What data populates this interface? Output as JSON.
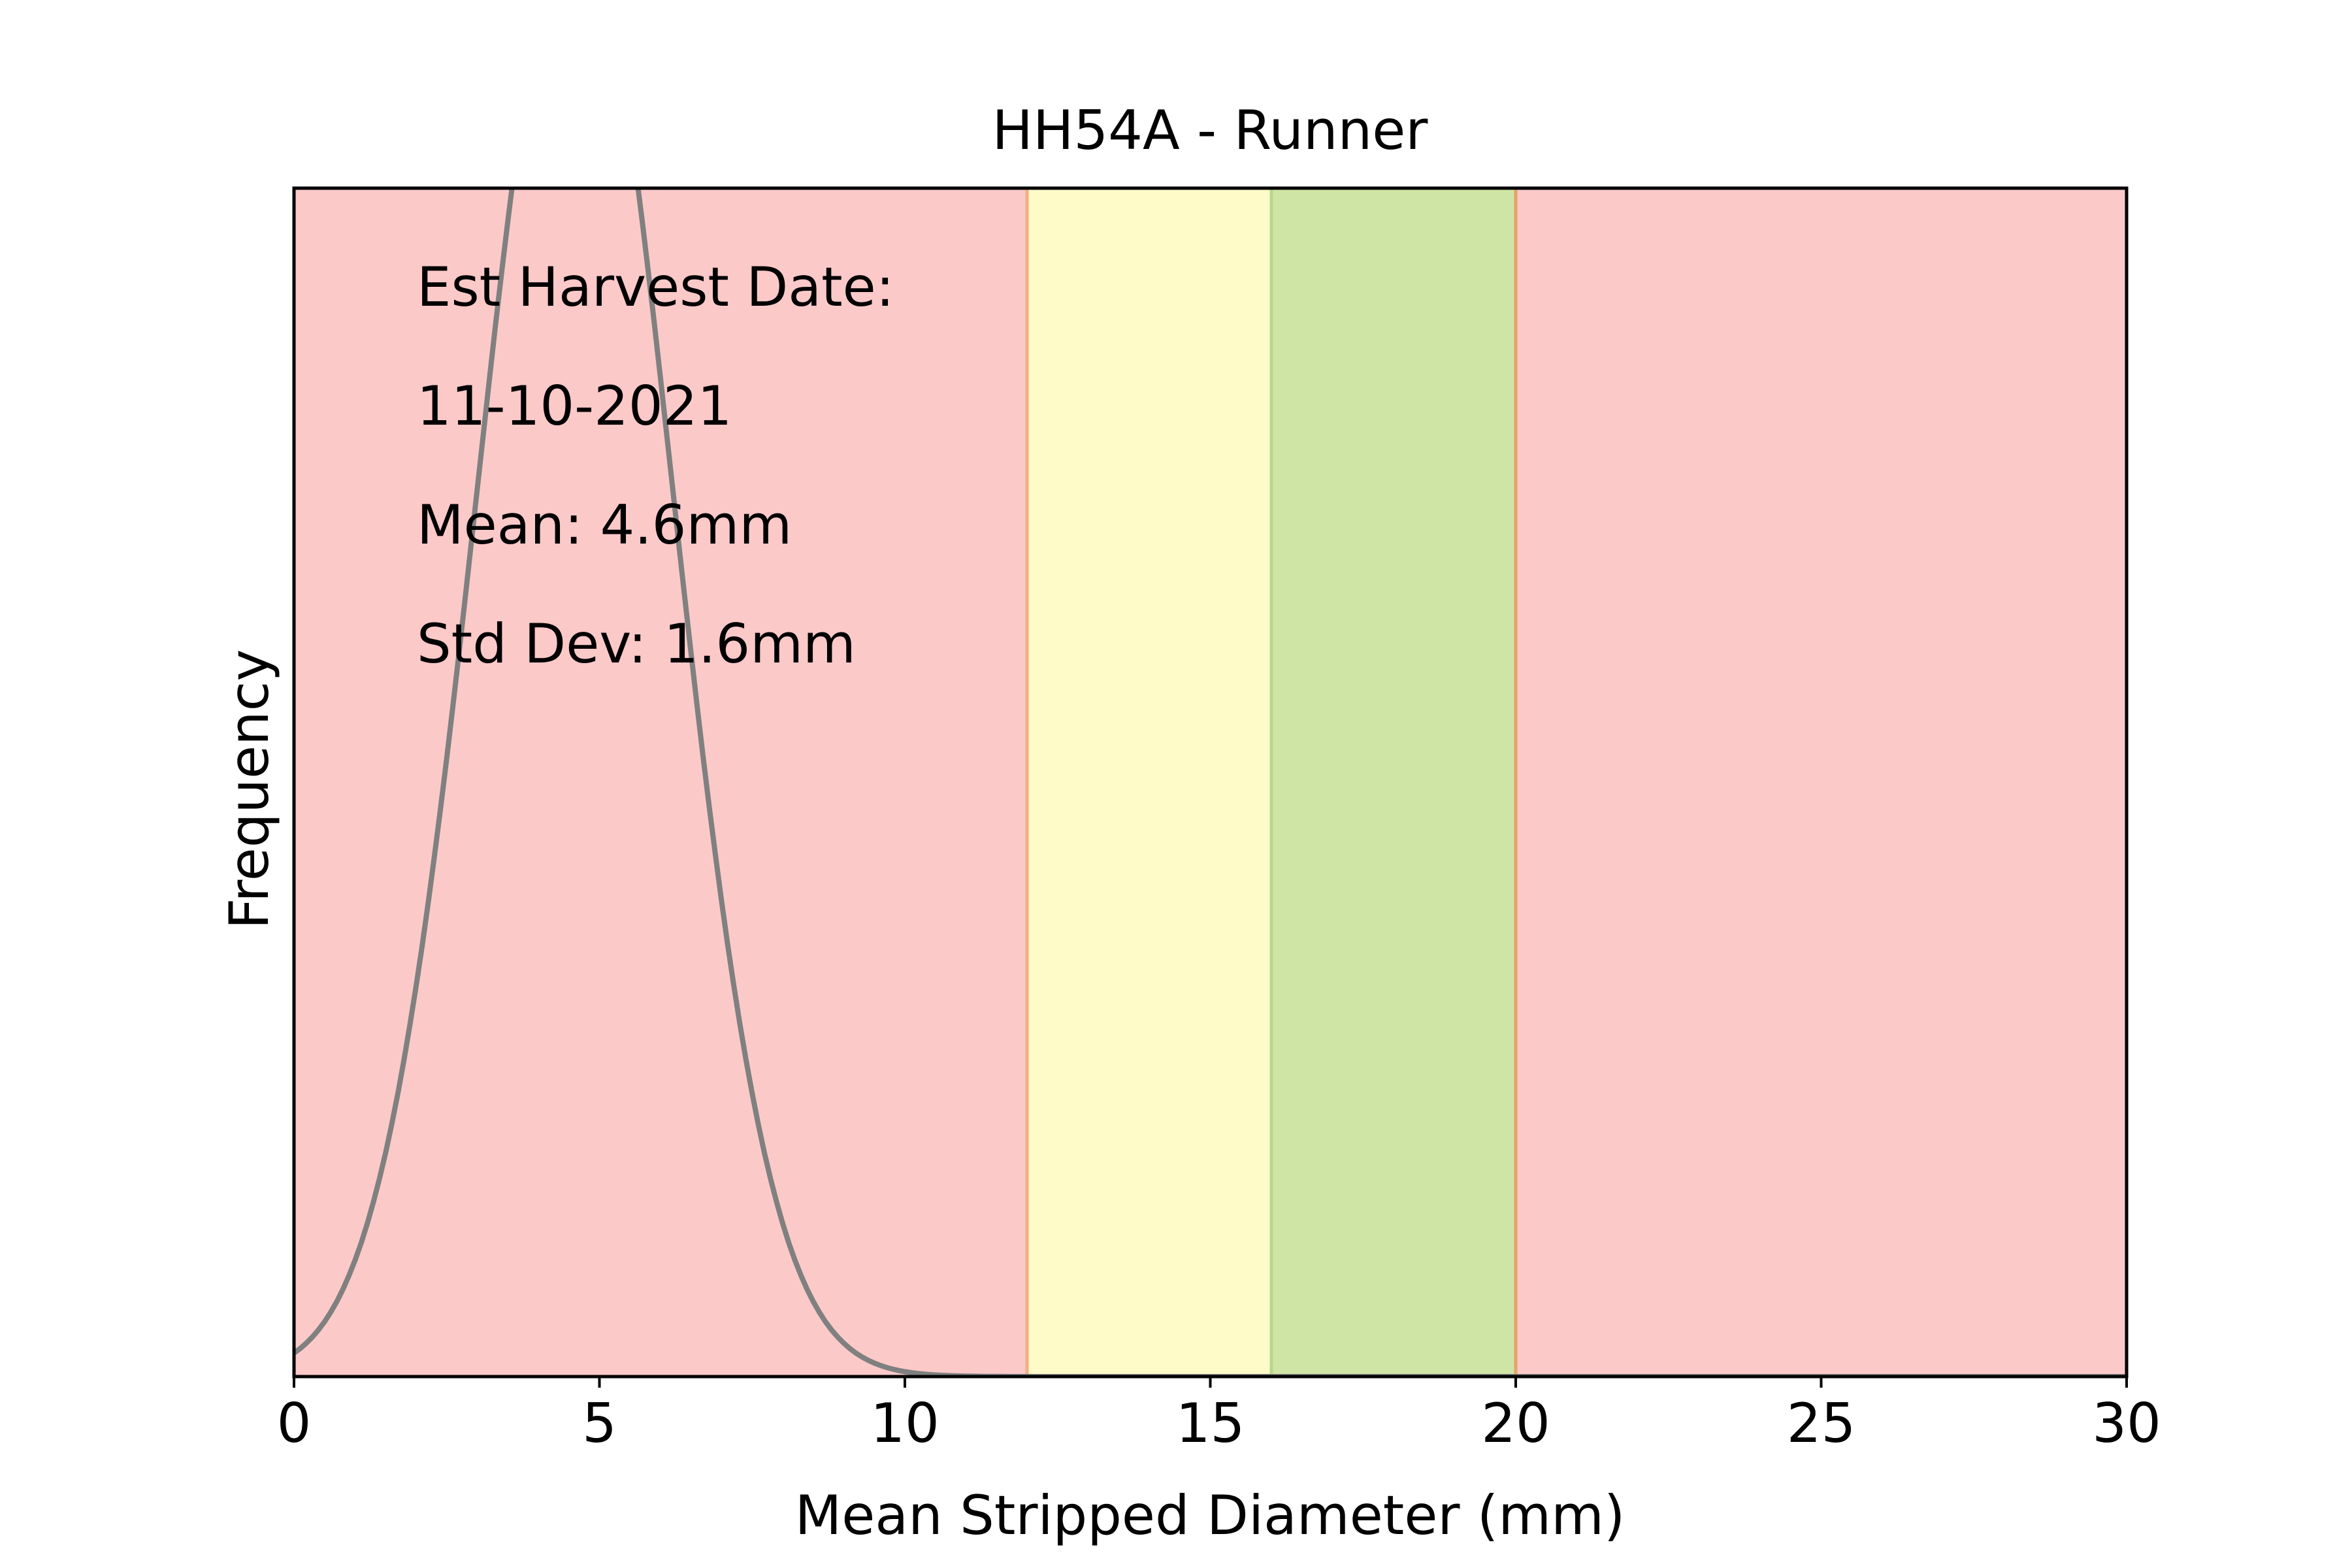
{
  "chart_data": {
    "type": "line",
    "title": "HH54A - Runner",
    "xlabel": "Mean Stripped Diameter (mm)",
    "ylabel": "Frequency",
    "xlim": [
      0,
      30
    ],
    "xticks": [
      0,
      5,
      10,
      15,
      20,
      25,
      30
    ],
    "y_ticks_shown": false,
    "grid": false,
    "legend": "none",
    "bands": [
      {
        "x_start": 0,
        "x_end": 12,
        "color": "#fcc9c9"
      },
      {
        "x_start": 12,
        "x_end": 16,
        "color": "#fefbc9"
      },
      {
        "x_start": 16,
        "x_end": 20,
        "color": "#cfe5a5"
      },
      {
        "x_start": 20,
        "x_end": 30,
        "color": "#fcc9c9"
      }
    ],
    "band_edges": [
      {
        "x": 12,
        "color": "#f5ad82"
      },
      {
        "x": 16,
        "color": "#b8d68f"
      },
      {
        "x": 20,
        "color": "#e9a06a"
      }
    ],
    "distribution": {
      "kind": "normal",
      "mean": 4.6,
      "std_dev": 1.6,
      "color": "#808080",
      "y_scale_note": "curve peak extends above the plotted y-range"
    },
    "annotations": [
      "Est Harvest Date:",
      "11-10-2021",
      "Mean: 4.6mm",
      "Std Dev: 1.6mm"
    ]
  }
}
